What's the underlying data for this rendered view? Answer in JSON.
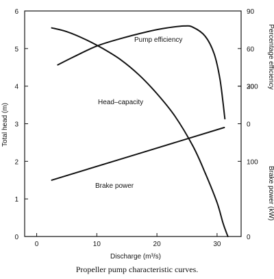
{
  "caption": "Propeller pump characteristic curves.",
  "chart_data": {
    "type": "line",
    "xlabel": "Discharge (m³/s)",
    "ylabel_left": "Total head (m)",
    "ylabel_right_top": "Percentage efficiency",
    "ylabel_right_bottom": "Brake power (kW)",
    "xlim": [
      -2,
      34
    ],
    "ylim_head": [
      0,
      6
    ],
    "ylim_efficiency": [
      -90,
      90
    ],
    "ylim_power": [
      0,
      300
    ],
    "x_ticks": [
      0,
      10,
      20,
      30
    ],
    "head_ticks": [
      0,
      1,
      2,
      3,
      4,
      5,
      6
    ],
    "efficiency_ticks": [
      0,
      30,
      60,
      90
    ],
    "power_ticks": [
      0,
      100,
      200
    ],
    "grid": false,
    "series": [
      {
        "name": "Head–capacity",
        "axis": "head",
        "x": [
          2.5,
          5,
          8,
          11,
          14,
          17,
          20,
          23,
          26,
          28,
          30,
          31,
          31.8
        ],
        "y": [
          5.55,
          5.45,
          5.25,
          5.0,
          4.7,
          4.3,
          3.8,
          3.2,
          2.4,
          1.7,
          0.9,
          0.35,
          0
        ]
      },
      {
        "name": "Pump efficiency",
        "axis": "efficiency",
        "x": [
          3.5,
          6,
          10,
          14,
          18,
          21,
          24.5,
          26,
          28,
          29.5,
          30.5,
          31.3
        ],
        "y": [
          47,
          53,
          62,
          68,
          73,
          76,
          78,
          77,
          70,
          56,
          35,
          4
        ]
      },
      {
        "name": "Brake power",
        "axis": "power",
        "x": [
          2.5,
          31.2
        ],
        "y": [
          75,
          145
        ]
      }
    ]
  }
}
